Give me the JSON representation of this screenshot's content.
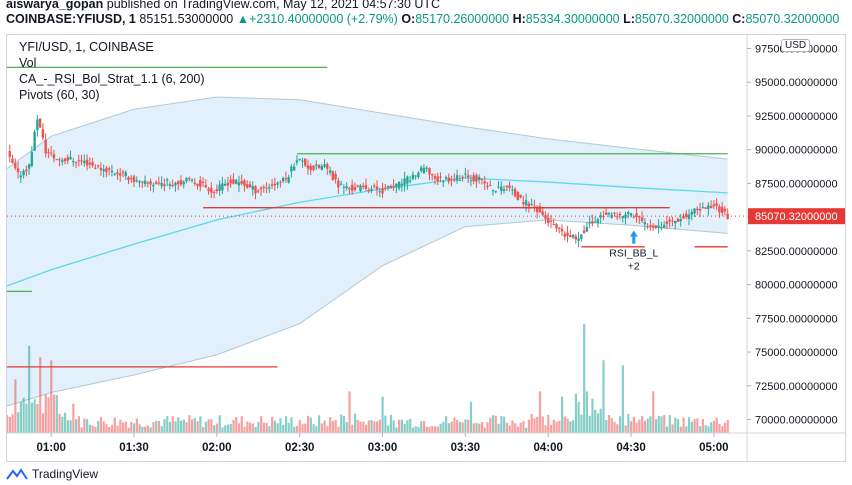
{
  "header": {
    "author": "aiswarya_gopan",
    "published": "published on TradingView.com, May 12, 2021 04:57:30 UTC",
    "symbol": "COINBASE:YFIUSD, 1",
    "last": "85151.53000000",
    "change": "+2310.40000000 (+2.79%)",
    "o_label": "O:",
    "o_value": "85170.26000000",
    "h_label": "H:",
    "h_value": "85334.30000000",
    "l_label": "L:",
    "l_value": "85070.32000000",
    "c_label": "C:",
    "c_value": "85070.32000000"
  },
  "legend": {
    "title": "YFI/USD, 1, COINBASE",
    "vol": "Vol",
    "strategy": "CA_-_RSI_Bol_Strat_1.1 (6, 200)",
    "pivots": "Pivots (60, 30)"
  },
  "price_axis": {
    "currency": "USD",
    "current_price_label": "85070.32000000"
  },
  "annotation": {
    "label": "RSI_BB_L",
    "qty": "+2"
  },
  "footer": {
    "brand": "TradingView"
  },
  "colors": {
    "up": "#26a69a",
    "down": "#ef5350",
    "band_fill": "#e1f0fa",
    "band_line": "#b2c8d8",
    "ma": "#5ed8e8",
    "pivot_green": "#4caf50",
    "pivot_red": "#e53935",
    "arrow": "#2196f3"
  },
  "chart_data": {
    "type": "candlestick",
    "title": "YFI/USD, 1, COINBASE",
    "y_axis": {
      "min": 69000,
      "max": 98500,
      "ticks": [
        97500,
        95000,
        92500,
        90000,
        87500,
        85000,
        82500,
        80000,
        77500,
        75000,
        72500,
        70000
      ],
      "tick_labels": [
        "97500.00000000",
        "95000.00000000",
        "92500.00000000",
        "90000.00000000",
        "87500.00000000",
        "85000.00000000",
        "82500.00000000",
        "80000.00000000",
        "77500.00000000",
        "75000.00000000",
        "72500.00000000",
        "70000.00000000"
      ]
    },
    "x_axis": {
      "labels": [
        "01:00",
        "01:30",
        "02:00",
        "02:30",
        "03:00",
        "03:30",
        "04:00",
        "04:30",
        "05:00"
      ],
      "start": "00:44",
      "end": "05:12"
    },
    "current_price": 85070.32,
    "price_path": [
      [
        "00:44",
        89700
      ],
      [
        "00:48",
        88100
      ],
      [
        "00:52",
        88800
      ],
      [
        "00:55",
        92400
      ],
      [
        "00:58",
        89900
      ],
      [
        "01:02",
        89300
      ],
      [
        "01:07",
        89300
      ],
      [
        "01:12",
        89100
      ],
      [
        "01:17",
        88700
      ],
      [
        "01:22",
        88400
      ],
      [
        "01:27",
        88100
      ],
      [
        "01:32",
        87500
      ],
      [
        "01:38",
        87500
      ],
      [
        "01:45",
        87600
      ],
      [
        "01:50",
        87700
      ],
      [
        "01:55",
        87400
      ],
      [
        "01:59",
        86900
      ],
      [
        "02:04",
        87600
      ],
      [
        "02:09",
        87500
      ],
      [
        "02:14",
        87000
      ],
      [
        "02:19",
        87300
      ],
      [
        "02:25",
        87800
      ],
      [
        "02:29",
        89400
      ],
      [
        "02:34",
        88600
      ],
      [
        "02:39",
        88800
      ],
      [
        "02:44",
        87400
      ],
      [
        "02:49",
        87100
      ],
      [
        "02:54",
        87200
      ],
      [
        "03:00",
        87000
      ],
      [
        "03:05",
        87300
      ],
      [
        "03:10",
        87900
      ],
      [
        "03:15",
        88600
      ],
      [
        "03:20",
        87800
      ],
      [
        "03:25",
        87900
      ],
      [
        "03:30",
        88000
      ],
      [
        "03:35",
        87800
      ],
      [
        "03:40",
        87000
      ],
      [
        "03:45",
        87300
      ],
      [
        "03:50",
        86200
      ],
      [
        "03:55",
        85800
      ],
      [
        "04:00",
        84700
      ],
      [
        "04:05",
        83700
      ],
      [
        "04:10",
        83400
      ],
      [
        "04:15",
        84500
      ],
      [
        "04:20",
        85200
      ],
      [
        "04:25",
        85000
      ],
      [
        "04:30",
        85300
      ],
      [
        "04:35",
        84500
      ],
      [
        "04:40",
        84400
      ],
      [
        "04:45",
        84700
      ],
      [
        "04:50",
        85100
      ],
      [
        "04:55",
        85600
      ],
      [
        "05:00",
        85900
      ],
      [
        "05:05",
        85100
      ]
    ],
    "volume_spikes": [
      [
        "00:47",
        10
      ],
      [
        "00:52",
        15
      ],
      [
        "00:56",
        14
      ],
      [
        "01:00",
        11
      ],
      [
        "02:48",
        8
      ],
      [
        "03:00",
        7
      ],
      [
        "03:32",
        6
      ],
      [
        "03:57",
        8
      ],
      [
        "04:05",
        7
      ],
      [
        "04:13",
        21
      ],
      [
        "04:20",
        14
      ],
      [
        "04:27",
        13
      ],
      [
        "04:38",
        8
      ]
    ],
    "bollinger": {
      "upper": [
        [
          "00:44",
          88600
        ],
        [
          "01:00",
          91000
        ],
        [
          "01:30",
          93000
        ],
        [
          "02:00",
          93900
        ],
        [
          "02:30",
          93700
        ],
        [
          "03:00",
          92700
        ],
        [
          "03:30",
          91700
        ],
        [
          "04:00",
          90800
        ],
        [
          "04:30",
          90100
        ],
        [
          "05:05",
          89300
        ]
      ],
      "lower": [
        [
          "00:44",
          71000
        ],
        [
          "01:00",
          72000
        ],
        [
          "01:30",
          73300
        ],
        [
          "02:00",
          74800
        ],
        [
          "02:30",
          77100
        ],
        [
          "03:00",
          81400
        ],
        [
          "03:30",
          84300
        ],
        [
          "04:00",
          84800
        ],
        [
          "04:30",
          84400
        ],
        [
          "05:05",
          83800
        ]
      ]
    },
    "moving_average": [
      [
        "00:44",
        79900
      ],
      [
        "01:00",
        81100
      ],
      [
        "01:30",
        83000
      ],
      [
        "02:00",
        84800
      ],
      [
        "02:30",
        86100
      ],
      [
        "03:00",
        87100
      ],
      [
        "03:30",
        87900
      ],
      [
        "04:00",
        87600
      ],
      [
        "04:30",
        87200
      ],
      [
        "05:05",
        86800
      ]
    ],
    "pivots": [
      {
        "color": "green",
        "price": 96100,
        "from": "00:44",
        "to": "02:40"
      },
      {
        "color": "green",
        "price": 79500,
        "from": "00:44",
        "to": "00:53"
      },
      {
        "color": "green",
        "price": 89700,
        "from": "02:29",
        "to": "05:05"
      },
      {
        "color": "red",
        "price": 85700,
        "from": "01:55",
        "to": "04:28"
      },
      {
        "color": "red",
        "price": 85700,
        "from": "03:50",
        "to": "04:44"
      },
      {
        "color": "red",
        "price": 82800,
        "from": "04:12",
        "to": "04:35"
      },
      {
        "color": "red",
        "price": 82800,
        "from": "04:53",
        "to": "05:05"
      },
      {
        "color": "red",
        "price": 73900,
        "from": "00:44",
        "to": "02:22"
      }
    ],
    "signal": {
      "time": "04:31",
      "price": 84000,
      "label": "RSI_BB_L",
      "qty": "+2"
    }
  }
}
